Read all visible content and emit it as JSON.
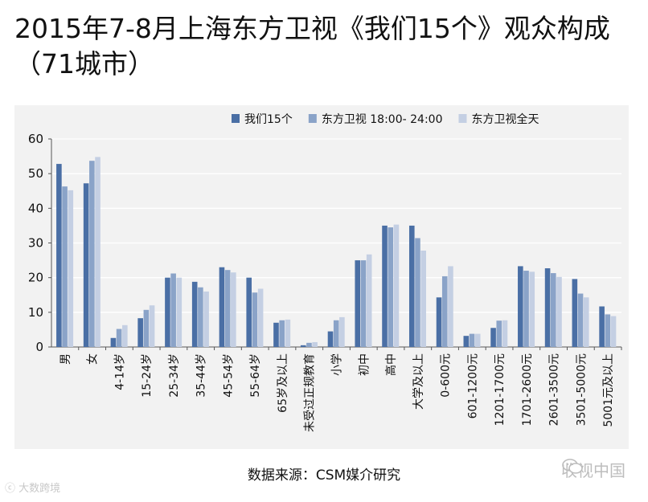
{
  "title_line1": "2015年7-8月上海东方卫视《我们15个》观众构成",
  "title_line2": "（71城市）",
  "source": "数据来源：CSM媒介研究",
  "watermark_right": "收视中国",
  "watermark_left": "大数跨境",
  "chart_data": {
    "type": "bar",
    "ylim": [
      0,
      60
    ],
    "yticks": [
      0,
      10,
      20,
      30,
      40,
      50,
      60
    ],
    "grid": true,
    "legend_position": "top",
    "categories": [
      "男",
      "女",
      "4-14岁",
      "15-24岁",
      "25-34岁",
      "35-44岁",
      "45-54岁",
      "55-64岁",
      "65岁及以上",
      "未受过正规教育",
      "小学",
      "初中",
      "高中",
      "大学及以上",
      "0-600元",
      "601-1200元",
      "1201-1700元",
      "1701-2600元",
      "2601-3500元",
      "3501-5000元",
      "5001元及以上"
    ],
    "series": [
      {
        "name": "我们15个",
        "color": "#4a6fa5",
        "values": [
          52.8,
          47.2,
          2.6,
          8.3,
          20.0,
          18.8,
          23.0,
          20.0,
          7.0,
          0.5,
          4.5,
          25.0,
          35.0,
          35.0,
          14.3,
          3.2,
          5.5,
          23.3,
          22.7,
          19.6,
          11.7
        ]
      },
      {
        "name": "东方卫视 18:00- 24:00",
        "color": "#8aa3c8",
        "values": [
          46.3,
          53.7,
          5.2,
          10.7,
          21.2,
          17.2,
          22.2,
          15.7,
          7.7,
          1.2,
          7.7,
          25.0,
          34.5,
          31.4,
          20.4,
          3.8,
          7.6,
          22.0,
          21.3,
          15.4,
          9.4
        ]
      },
      {
        "name": "东方卫视全天",
        "color": "#c4cfe3",
        "values": [
          45.2,
          54.8,
          6.3,
          12.0,
          20.0,
          16.0,
          21.5,
          16.8,
          7.9,
          1.4,
          8.6,
          26.7,
          35.3,
          27.8,
          23.3,
          3.8,
          7.7,
          21.7,
          20.2,
          14.3,
          8.9
        ]
      }
    ]
  }
}
